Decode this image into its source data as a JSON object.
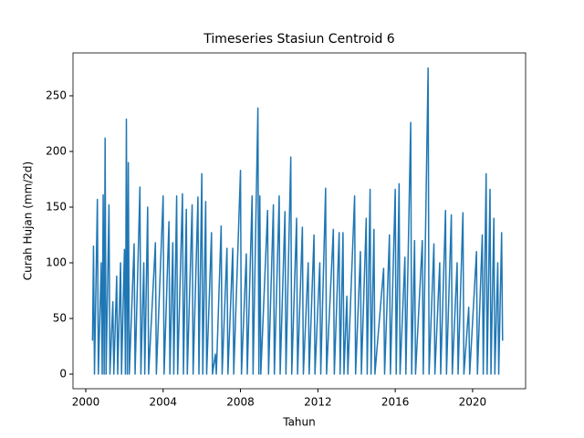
{
  "chart_data": {
    "type": "line",
    "title": "Timeseries Stasiun Centroid 6",
    "x_label": "Tahun",
    "y_label": "Curah Hujan (mm/2d)",
    "x": [
      2000.35,
      2000.4,
      2000.45,
      2000.6,
      2000.65,
      2000.8,
      2000.85,
      2000.9,
      2000.95,
      2001.0,
      2001.05,
      2001.2,
      2001.25,
      2001.4,
      2001.45,
      2001.6,
      2001.65,
      2001.8,
      2001.85,
      2002.0,
      2002.05,
      2002.1,
      2002.15,
      2002.2,
      2002.25,
      2002.5,
      2002.55,
      2002.8,
      2002.85,
      2003.0,
      2003.05,
      2003.2,
      2003.25,
      2003.6,
      2003.65,
      2004.0,
      2004.05,
      2004.3,
      2004.35,
      2004.5,
      2004.55,
      2004.7,
      2004.75,
      2005.0,
      2005.05,
      2005.2,
      2005.25,
      2005.5,
      2005.55,
      2005.8,
      2005.85,
      2006.0,
      2006.05,
      2006.2,
      2006.25,
      2006.5,
      2006.55,
      2006.7,
      2006.75,
      2007.0,
      2007.05,
      2007.3,
      2007.35,
      2007.6,
      2007.65,
      2008.0,
      2008.05,
      2008.3,
      2008.35,
      2008.6,
      2008.65,
      2008.9,
      2008.95,
      2009.0,
      2009.05,
      2009.4,
      2009.45,
      2009.7,
      2009.75,
      2010.0,
      2010.05,
      2010.3,
      2010.35,
      2010.6,
      2010.65,
      2010.9,
      2010.95,
      2011.2,
      2011.25,
      2011.5,
      2011.55,
      2011.8,
      2011.85,
      2012.1,
      2012.15,
      2012.4,
      2012.45,
      2012.8,
      2012.85,
      2013.1,
      2013.15,
      2013.3,
      2013.35,
      2013.5,
      2013.55,
      2013.9,
      2013.95,
      2014.2,
      2014.25,
      2014.5,
      2014.55,
      2014.7,
      2014.75,
      2014.9,
      2014.95,
      2015.4,
      2015.45,
      2015.7,
      2015.75,
      2016.0,
      2016.05,
      2016.2,
      2016.25,
      2016.5,
      2016.55,
      2016.8,
      2016.85,
      2017.0,
      2017.05,
      2017.4,
      2017.45,
      2017.7,
      2017.75,
      2018.0,
      2018.05,
      2018.3,
      2018.35,
      2018.6,
      2018.65,
      2018.9,
      2018.95,
      2019.2,
      2019.25,
      2019.5,
      2019.55,
      2019.8,
      2019.85,
      2020.2,
      2020.25,
      2020.5,
      2020.55,
      2020.7,
      2020.75,
      2020.9,
      2020.95,
      2021.1,
      2021.15,
      2021.3,
      2021.35,
      2021.5,
      2021.55
    ],
    "series": [
      {
        "color": "#1f77b4",
        "values": [
          30,
          115,
          0,
          157,
          0,
          100,
          0,
          161,
          0,
          212,
          0,
          152,
          0,
          65,
          0,
          88,
          0,
          100,
          0,
          112,
          0,
          229,
          0,
          190,
          0,
          117,
          0,
          168,
          0,
          100,
          0,
          150,
          0,
          118,
          0,
          160,
          0,
          137,
          0,
          118,
          0,
          160,
          0,
          162,
          0,
          148,
          0,
          152,
          0,
          159,
          0,
          180,
          0,
          155,
          0,
          127,
          0,
          18,
          0,
          133,
          0,
          113,
          0,
          113,
          0,
          183,
          0,
          108,
          0,
          160,
          0,
          239,
          0,
          160,
          0,
          147,
          0,
          152,
          0,
          160,
          0,
          146,
          0,
          195,
          0,
          140,
          0,
          132,
          0,
          100,
          0,
          125,
          0,
          100,
          0,
          167,
          0,
          130,
          0,
          127,
          0,
          127,
          0,
          70,
          0,
          160,
          0,
          110,
          0,
          140,
          0,
          166,
          0,
          130,
          0,
          95,
          0,
          125,
          0,
          166,
          0,
          171,
          0,
          105,
          0,
          226,
          0,
          120,
          0,
          120,
          0,
          275,
          0,
          117,
          0,
          100,
          0,
          147,
          0,
          143,
          0,
          100,
          0,
          145,
          0,
          60,
          0,
          110,
          0,
          125,
          0,
          180,
          0,
          166,
          0,
          140,
          0,
          100,
          0,
          127,
          30
        ]
      }
    ],
    "xlim": [
      1999.34,
      2022.74
    ],
    "xticks": [
      2000,
      2004,
      2008,
      2012,
      2016,
      2020
    ],
    "ylim": [
      -13.1,
      288.5
    ],
    "yticks": [
      0,
      50,
      100,
      150,
      200,
      250
    ]
  }
}
